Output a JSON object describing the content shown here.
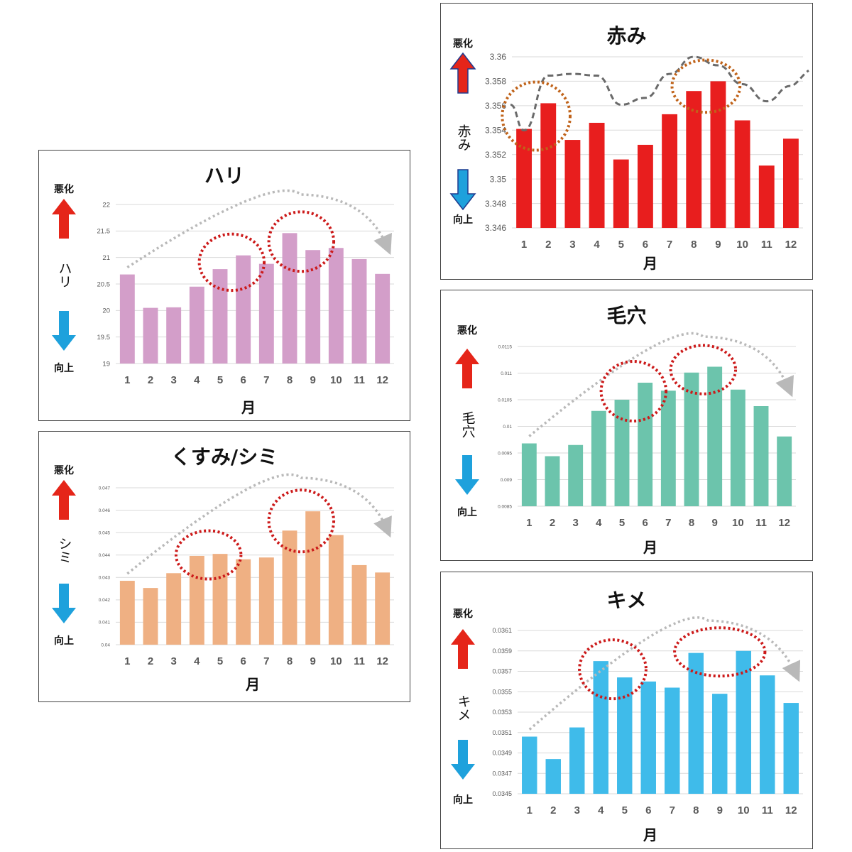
{
  "x_axis_title": "月",
  "worse_label": "悪化",
  "better_label": "向上",
  "colors": {
    "hari": "#d39ec9",
    "kusumi": "#efb083",
    "akami": "#e81e1e",
    "keana": "#6cc4ac",
    "kime": "#3fbbea",
    "arrow_up": "#e52519",
    "arrow_down": "#1ea1dc",
    "highlight_circle": "#cc1a1a",
    "highlight_circle_akami": "#c0631a",
    "trend_arrow": "#b9b9b9",
    "trend_dash_akami": "#6a6a6a"
  },
  "chart_data": [
    {
      "id": "hari",
      "type": "bar",
      "title": "ハリ",
      "ylabel": "ハリ",
      "xlabel": "月",
      "categories": [
        "1",
        "2",
        "3",
        "4",
        "5",
        "6",
        "7",
        "8",
        "9",
        "10",
        "11",
        "12"
      ],
      "values": [
        20.68,
        20.05,
        20.06,
        20.45,
        20.78,
        21.04,
        20.88,
        21.46,
        21.14,
        21.18,
        20.97,
        20.69
      ],
      "yticks": [
        "22",
        "21.5",
        "21",
        "20.5",
        "20",
        "19.5",
        "19"
      ],
      "ylim": [
        19,
        22
      ],
      "grid": true,
      "highlighted_months": [
        [
          "5",
          "6"
        ],
        [
          "8",
          "9"
        ]
      ]
    },
    {
      "id": "kusumi",
      "type": "bar",
      "title": "くすみ/シミ",
      "ylabel": "シミ",
      "xlabel": "月",
      "categories": [
        "1",
        "2",
        "3",
        "4",
        "5",
        "6",
        "7",
        "8",
        "9",
        "10",
        "11",
        "12"
      ],
      "values": [
        0.04285,
        0.04253,
        0.04319,
        0.04396,
        0.04405,
        0.04381,
        0.04389,
        0.04509,
        0.04595,
        0.04489,
        0.04355,
        0.04322
      ],
      "yticks": [
        "0.047",
        "0.046",
        "0.045",
        "0.044",
        "0.043",
        "0.042",
        "0.041",
        "0.04"
      ],
      "ylim": [
        0.04,
        0.047
      ],
      "grid": true,
      "highlighted_months": [
        [
          "4",
          "5"
        ],
        [
          "8",
          "9"
        ]
      ]
    },
    {
      "id": "akami",
      "type": "bar",
      "title": "赤み",
      "ylabel": "赤み",
      "xlabel": "月",
      "categories": [
        "1",
        "2",
        "3",
        "4",
        "5",
        "6",
        "7",
        "8",
        "9",
        "10",
        "11",
        "12"
      ],
      "values": [
        3.3541,
        3.3562,
        3.3532,
        3.3546,
        3.3516,
        3.3528,
        3.3553,
        3.3572,
        3.358,
        3.3548,
        3.3511,
        3.3533
      ],
      "yticks": [
        "3.36",
        "3.358",
        "3.356",
        "3.354",
        "3.352",
        "3.35",
        "3.348",
        "3.346"
      ],
      "ylim": [
        3.346,
        3.36
      ],
      "grid": true,
      "highlighted_months": [
        [
          "1",
          "2"
        ],
        [
          "8",
          "9"
        ]
      ]
    },
    {
      "id": "keana",
      "type": "bar",
      "title": "毛穴",
      "ylabel": "毛穴",
      "xlabel": "月",
      "categories": [
        "1",
        "2",
        "3",
        "4",
        "5",
        "6",
        "7",
        "8",
        "9",
        "10",
        "11",
        "12"
      ],
      "values": [
        0.00968,
        0.00944,
        0.00965,
        0.01029,
        0.0105,
        0.01082,
        0.01067,
        0.01101,
        0.01112,
        0.01069,
        0.01038,
        0.00981
      ],
      "yticks": [
        "0.0115",
        "0.011",
        "0.0105",
        "0.01",
        "0.0095",
        "0.009",
        "0.0085"
      ],
      "ylim": [
        0.0085,
        0.0115
      ],
      "grid": true,
      "highlighted_months": [
        [
          "5",
          "6"
        ],
        [
          "8",
          "9"
        ]
      ]
    },
    {
      "id": "kime",
      "type": "bar",
      "title": "キメ",
      "ylabel": "キメ",
      "xlabel": "月",
      "categories": [
        "1",
        "2",
        "3",
        "4",
        "5",
        "6",
        "7",
        "8",
        "9",
        "10",
        "11",
        "12"
      ],
      "values": [
        0.03506,
        0.03484,
        0.03515,
        0.0358,
        0.03564,
        0.0356,
        0.03554,
        0.03588,
        0.03548,
        0.0359,
        0.03566,
        0.03539
      ],
      "yticks": [
        "0.0361",
        "0.0359",
        "0.0357",
        "0.0355",
        "0.0353",
        "0.0351",
        "0.0349",
        "0.0347",
        "0.0345"
      ],
      "ylim": [
        0.0345,
        0.0361
      ],
      "grid": true,
      "highlighted_months": [
        [
          "4",
          "5"
        ],
        [
          "8",
          "10"
        ]
      ]
    }
  ]
}
